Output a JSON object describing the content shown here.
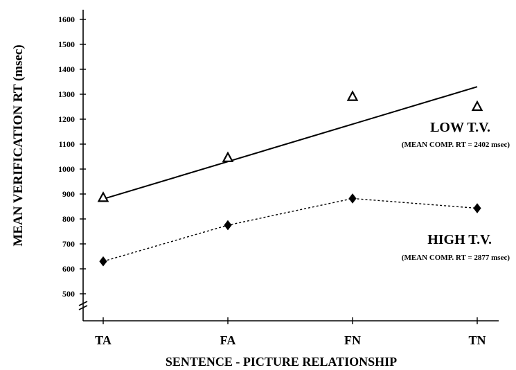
{
  "chart_data": {
    "type": "line",
    "categories": [
      "TA",
      "FA",
      "FN",
      "TN"
    ],
    "ylabel": "MEAN VERIFICATION RT  (msec)",
    "xlabel": "SENTENCE - PICTURE RELATIONSHIP",
    "yticks": [
      500,
      600,
      700,
      800,
      900,
      1000,
      1100,
      1200,
      1300,
      1400,
      1500,
      1600
    ],
    "ylim": [
      500,
      1600
    ],
    "axis_break": true,
    "grid": false,
    "series": [
      {
        "name": "LOW T.V.",
        "sublabel": "(MEAN COMP. RT = 2402 msec)",
        "marker": "triangle-open",
        "points": [
          885,
          1045,
          1290,
          1250
        ],
        "fit_line": {
          "style": "solid",
          "start": 880,
          "end": 1330
        }
      },
      {
        "name": "HIGH T.V.",
        "sublabel": "(MEAN COMP. RT = 2877 msec)",
        "marker": "diamond-filled",
        "points": [
          630,
          775,
          882,
          843
        ],
        "line_style": "dashed"
      }
    ],
    "colors": {
      "ink": "#000000",
      "background": "#ffffff"
    }
  }
}
